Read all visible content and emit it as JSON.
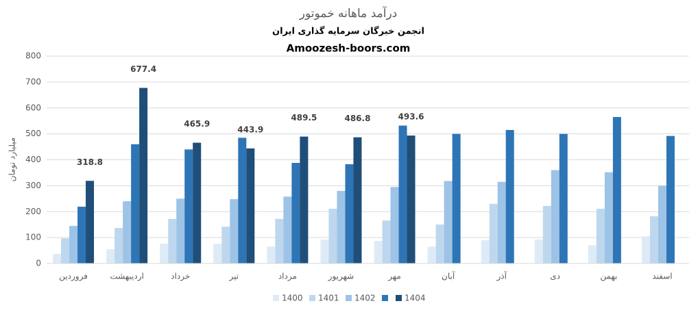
{
  "chart_data": {
    "type": "bar",
    "title": "درآمد ماهانه خموتور",
    "subtitle": "انجمن خبرگان سرمایه گذاری ایران",
    "source": "Amoozesh-boors.com",
    "y_label": "میلیارد تومان",
    "categories": [
      "فروردین",
      "اردیبهشت",
      "خرداد",
      "تیر",
      "مرداد",
      "شهریور",
      "مهر",
      "آبان",
      "آذر",
      "دی",
      "بهمن",
      "اسفند"
    ],
    "series": [
      {
        "name": "1400",
        "color": "#deebf7",
        "values": [
          37,
          55,
          76,
          76,
          65,
          92,
          87,
          65,
          90,
          93,
          70,
          105
        ]
      },
      {
        "name": "1401",
        "color": "#bdd7ee",
        "values": [
          97,
          137,
          172,
          142,
          172,
          211,
          166,
          150,
          230,
          222,
          211,
          182
        ]
      },
      {
        "name": "1402",
        "color": "#9dc3e6",
        "values": [
          145,
          240,
          250,
          248,
          258,
          280,
          295,
          318,
          315,
          360,
          352,
          300
        ]
      },
      {
        "name": null,
        "color": "#2e75b6",
        "values": [
          219,
          460,
          440,
          485,
          388,
          383,
          532,
          500,
          515,
          500,
          565,
          492
        ]
      },
      {
        "name": "1404",
        "color": "#1f4e79",
        "data_labels": true,
        "values": [
          318.8,
          677.4,
          465.9,
          443.9,
          489.5,
          486.8,
          493.6,
          null,
          null,
          null,
          null,
          null
        ]
      }
    ],
    "ylim": [
      0,
      800
    ],
    "yticks": [
      0,
      100,
      200,
      300,
      400,
      500,
      600,
      700,
      800
    ],
    "grid": true,
    "legend": "bottom"
  }
}
